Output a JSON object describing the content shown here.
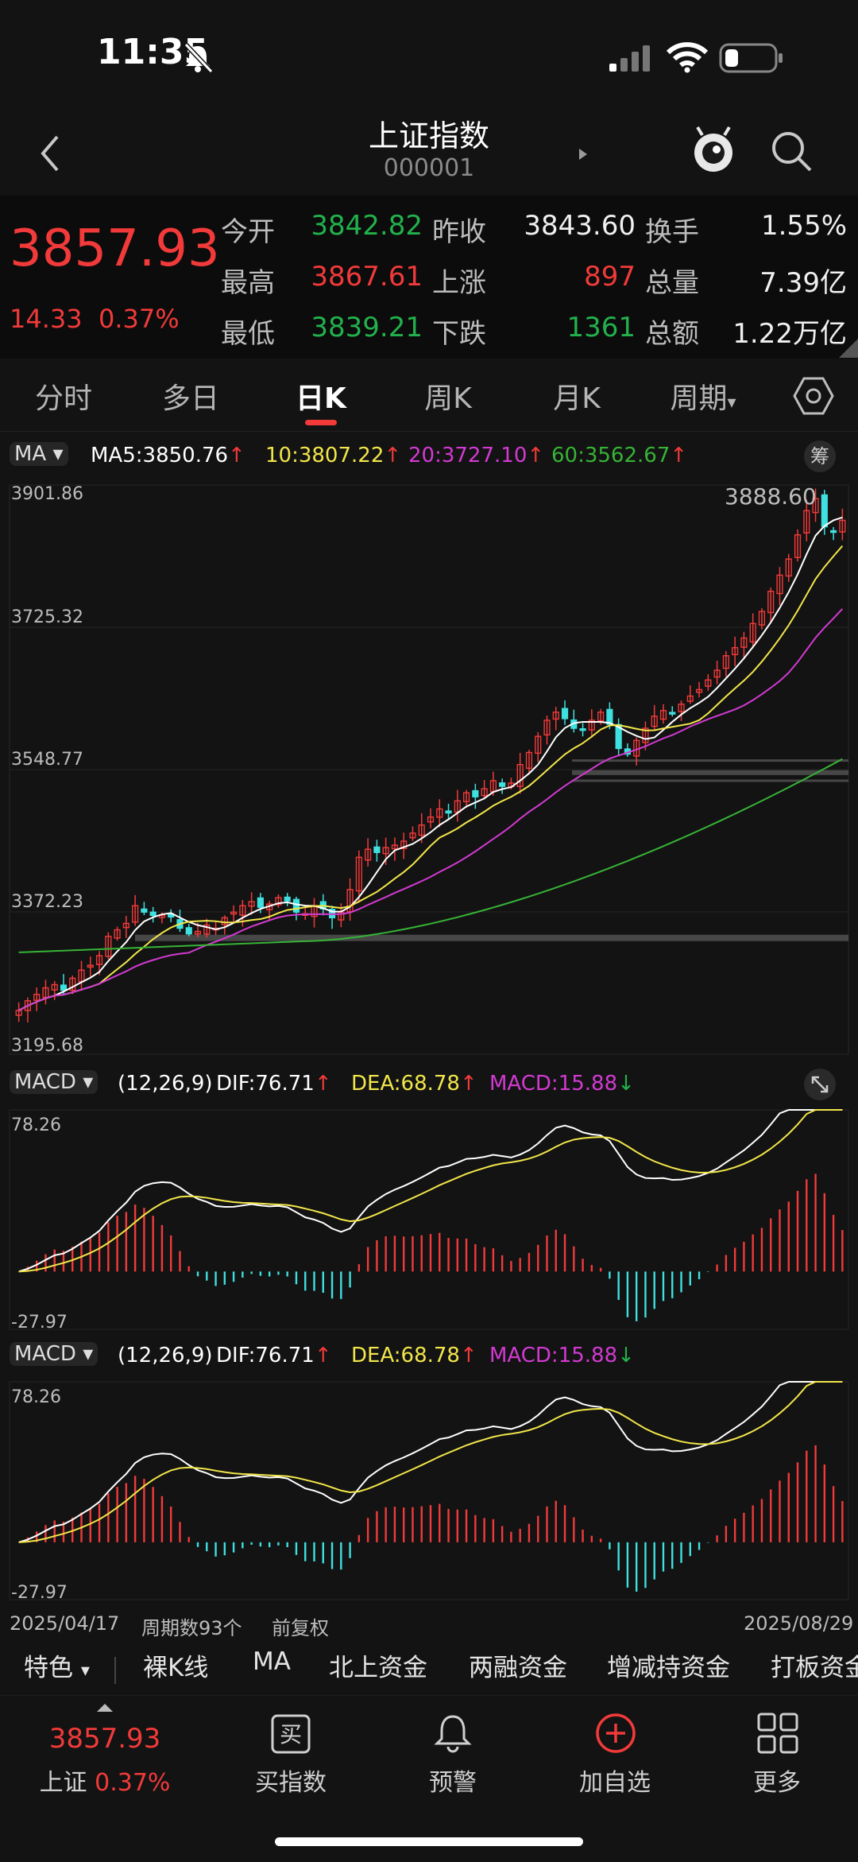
{
  "status": {
    "time": "11:35"
  },
  "nav": {
    "title": "上证指数",
    "code": "000001"
  },
  "quote": {
    "price": "3857.93",
    "change": "14.33",
    "change_pct": "0.37%",
    "rows": [
      [
        {
          "label": "今开",
          "value": "3842.82",
          "color": "green"
        },
        {
          "label": "昨收",
          "value": "3843.60",
          "color": "white"
        },
        {
          "label": "换手",
          "value": "1.55%",
          "color": "white"
        }
      ],
      [
        {
          "label": "最高",
          "value": "3867.61",
          "color": "red"
        },
        {
          "label": "上涨",
          "value": "897",
          "color": "red"
        },
        {
          "label": "总量",
          "value": "7.39亿",
          "color": "white"
        }
      ],
      [
        {
          "label": "最低",
          "value": "3839.21",
          "color": "green"
        },
        {
          "label": "下跌",
          "value": "1361",
          "color": "green"
        },
        {
          "label": "总额",
          "value": "1.22万亿",
          "color": "white"
        }
      ]
    ]
  },
  "tabs": [
    {
      "label": "分时"
    },
    {
      "label": "多日"
    },
    {
      "label": "日K",
      "active": true
    },
    {
      "label": "周K"
    },
    {
      "label": "月K"
    },
    {
      "label": "周期"
    }
  ],
  "ma": {
    "selector": "MA",
    "ma5": "MA5:3850.76",
    "ma10": "10:3807.22",
    "ma20": "20:3727.10",
    "ma60": "60:3562.67",
    "chip": "筹",
    "colors": {
      "ma5": "#ffffff",
      "ma10": "#f2e64a",
      "ma20": "#d23ad2",
      "ma60": "#36b336"
    }
  },
  "macd": {
    "selector": "MACD",
    "params": "(12,26,9)",
    "dif": "DIF:76.71",
    "dea": "DEA:68.78",
    "macd": "MACD:15.88",
    "top": "78.26",
    "bottom": "-27.97"
  },
  "chart_data": {
    "type": "candlestick",
    "y_ticks": [
      "3901.86",
      "3725.32",
      "3548.77",
      "3372.23",
      "3195.68"
    ],
    "ylim": [
      3195.68,
      3901.86
    ],
    "high_label": "3888.60",
    "start_date": "2025/04/17",
    "end_date": "2025/08/29",
    "period_count": "周期数93个",
    "adjust": "前复权",
    "close_trend": [
      3250,
      3262,
      3270,
      3278,
      3282,
      3275,
      3290,
      3300,
      3306,
      3318,
      3342,
      3350,
      3358,
      3380,
      3372,
      3368,
      3368,
      3366,
      3352,
      3345,
      3348,
      3356,
      3352,
      3365,
      3372,
      3380,
      3385,
      3378,
      3382,
      3390,
      3386,
      3372,
      3370,
      3380,
      3376,
      3365,
      3372,
      3400,
      3440,
      3450,
      3446,
      3452,
      3455,
      3460,
      3470,
      3480,
      3490,
      3500,
      3495,
      3510,
      3520,
      3515,
      3525,
      3535,
      3528,
      3532,
      3555,
      3570,
      3590,
      3610,
      3620,
      3612,
      3600,
      3598,
      3610,
      3620,
      3605,
      3575,
      3568,
      3585,
      3600,
      3615,
      3622,
      3618,
      3630,
      3640,
      3648,
      3660,
      3672,
      3690,
      3700,
      3712,
      3730,
      3745,
      3770,
      3790,
      3810,
      3840,
      3870,
      3885,
      3850,
      3845,
      3858
    ]
  },
  "features": [
    "特色",
    "裸K线",
    "MA",
    "北上资金",
    "两融资金",
    "增减持资金",
    "打板资金"
  ],
  "bottom_nav": {
    "index_price": "3857.93",
    "index_name": "上证",
    "index_pct": "0.37%",
    "items": [
      {
        "label": "买指数"
      },
      {
        "label": "预警"
      },
      {
        "label": "加自选"
      },
      {
        "label": "更多"
      }
    ]
  }
}
